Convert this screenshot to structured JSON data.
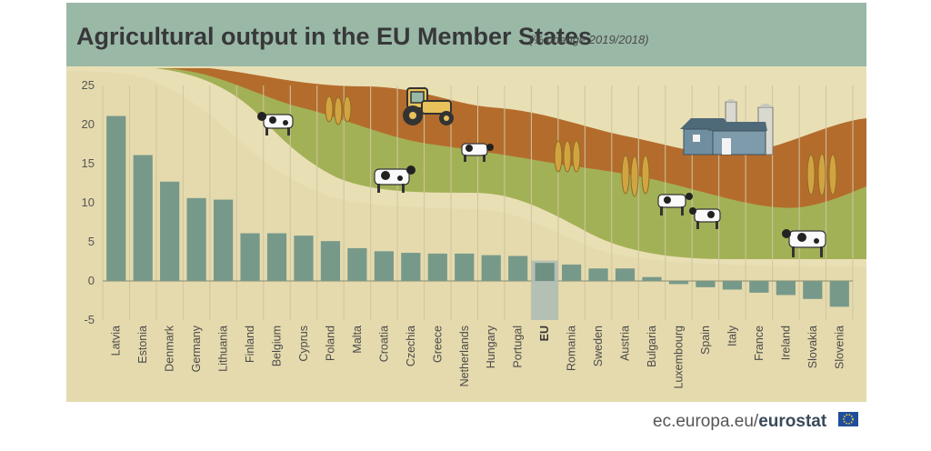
{
  "title": "Agricultural output in the EU Member States",
  "subtitle": "(% change 2019/2018)",
  "footer": {
    "site": "ec.europa.eu/",
    "brand": "eurostat"
  },
  "colors": {
    "bar": "#77998a",
    "highlight_bar": "#aebcb5",
    "grid": "#cfc5a0",
    "background": "#e9dfb5",
    "sky": "#9ab8a6",
    "hill_green": "#a3b156",
    "hill_brown": "#b46c2c"
  },
  "chart_data": {
    "type": "bar",
    "title": "Agricultural output in the EU Member States",
    "subtitle": "(% change 2019/2018)",
    "xlabel": "",
    "ylabel": "",
    "ylim": [
      -5,
      25
    ],
    "yticks": [
      -5,
      0,
      5,
      10,
      15,
      20,
      25
    ],
    "highlight": "EU",
    "categories": [
      "Latvia",
      "Estonia",
      "Denmark",
      "Germany",
      "Lithuania",
      "Finland",
      "Belgium",
      "Cyprus",
      "Poland",
      "Malta",
      "Croatia",
      "Czechia",
      "Greece",
      "Netherlands",
      "Hungary",
      "Portugal",
      "EU",
      "Romania",
      "Sweden",
      "Austria",
      "Bulgaria",
      "Luxembourg",
      "Spain",
      "Italy",
      "France",
      "Ireland",
      "Slovakia",
      "Slovenia"
    ],
    "values": [
      21.1,
      16.1,
      12.7,
      10.6,
      10.4,
      6.1,
      6.1,
      5.8,
      5.1,
      4.2,
      3.8,
      3.6,
      3.5,
      3.5,
      3.3,
      3.2,
      2.3,
      2.1,
      1.6,
      1.6,
      0.5,
      -0.4,
      -0.8,
      -1.1,
      -1.5,
      -1.8,
      -2.3,
      -3.3
    ]
  }
}
